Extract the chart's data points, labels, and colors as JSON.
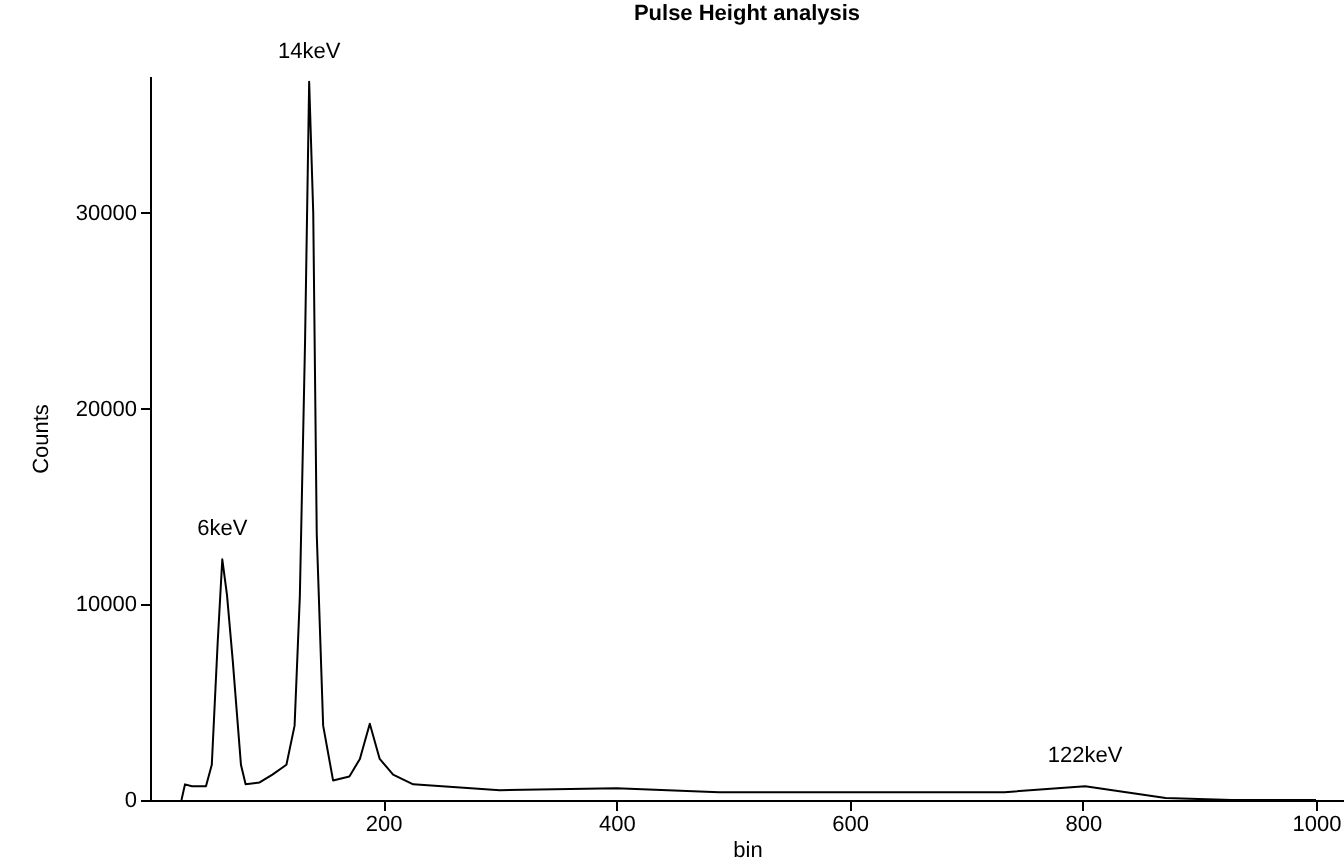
{
  "chart_data": {
    "type": "line",
    "title": "Pulse Height analysis",
    "xlabel": "bin",
    "ylabel": "Counts",
    "x": [
      27,
      30,
      36,
      48,
      53,
      58,
      62,
      66,
      71,
      78,
      82,
      94,
      105,
      117,
      124,
      128.5,
      133,
      136.5,
      140,
      143,
      148.5,
      157,
      171,
      180,
      188.5,
      197,
      208.5,
      225.7,
      300,
      400,
      488,
      600,
      733,
      802,
      871,
      928,
      1000
    ],
    "series": [
      {
        "color": "#000000",
        "values": [
          0,
          800,
          700,
          700,
          1800,
          8000,
          12300,
          10500,
          7100,
          1800,
          800,
          900,
          1300,
          1800,
          3800,
          10400,
          23500,
          36700,
          30000,
          13600,
          3800,
          1000,
          1200,
          2100,
          3900,
          2100,
          1300,
          800,
          500,
          600,
          400,
          400,
          400,
          700,
          100,
          0,
          0
        ]
      }
    ],
    "xlim": [
      0,
      1024
    ],
    "xticks": [
      200,
      400,
      600,
      800,
      1000
    ],
    "ylim": [
      0,
      37000
    ],
    "yticks": [
      0,
      10000,
      20000,
      30000
    ],
    "annotations": [
      {
        "text": "6keV",
        "x": 62,
        "y": 12300
      },
      {
        "text": "14keV",
        "x": 136.5,
        "y": 36700
      },
      {
        "text": "122keV",
        "x": 802,
        "y": 700
      }
    ]
  }
}
